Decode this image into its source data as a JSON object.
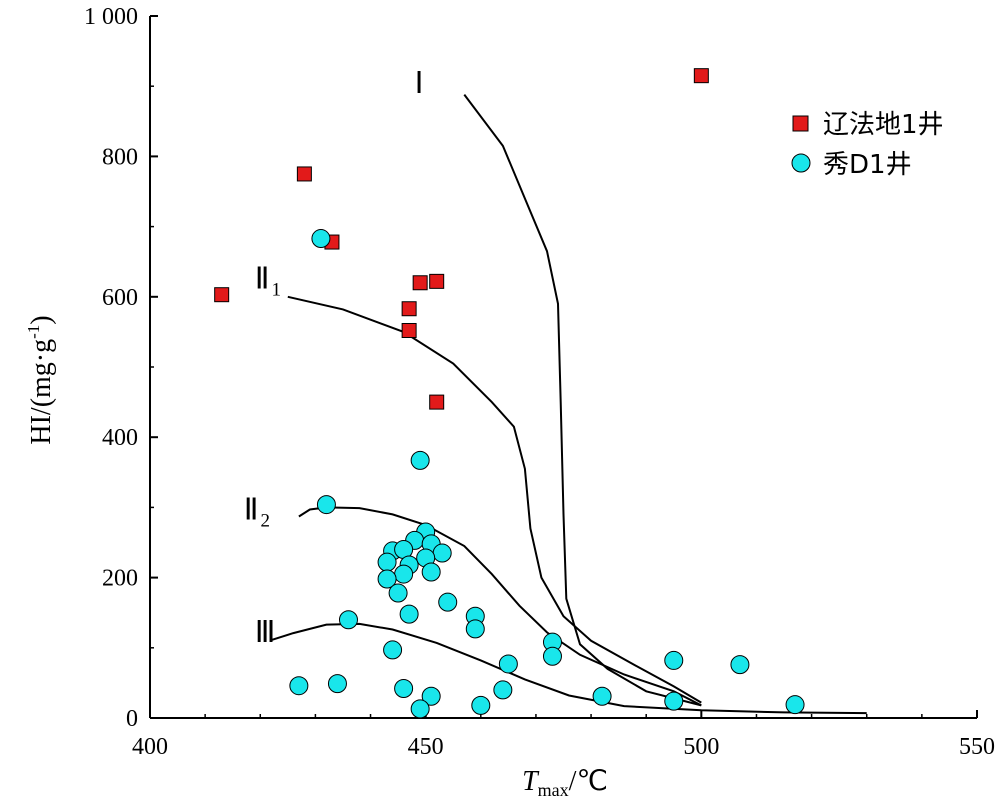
{
  "chart_data": {
    "type": "scatter",
    "xlabel_main": "T",
    "xlabel_sub": "max",
    "xlabel_unit": "/℃",
    "ylabel_main": "HI/(mg·g",
    "ylabel_sup": "-1",
    "ylabel_close": ")",
    "xlim": [
      400,
      550
    ],
    "ylim": [
      0,
      1000
    ],
    "x_ticks": [
      400,
      450,
      500,
      550
    ],
    "x_tick_labels": [
      "400",
      "450",
      "500",
      "550"
    ],
    "y_ticks": [
      0,
      200,
      400,
      600,
      800,
      1000
    ],
    "y_tick_labels": [
      "0",
      "200",
      "400",
      "600",
      "800",
      "1 000"
    ],
    "grid": false,
    "legend_position": "top-right",
    "series": [
      {
        "name": "辽法地1井",
        "marker": "square",
        "color": "#e21a1a",
        "points": [
          [
            413,
            603
          ],
          [
            428,
            775
          ],
          [
            433,
            678
          ],
          [
            447,
            583
          ],
          [
            447,
            552
          ],
          [
            449,
            620
          ],
          [
            452,
            622
          ],
          [
            452,
            450
          ],
          [
            500,
            915
          ]
        ]
      },
      {
        "name": "秀D1井",
        "marker": "circle",
        "color": "#19e6eb",
        "points": [
          [
            431,
            683
          ],
          [
            449,
            367
          ],
          [
            432,
            304
          ],
          [
            450,
            265
          ],
          [
            448,
            253
          ],
          [
            451,
            248
          ],
          [
            444,
            238
          ],
          [
            446,
            240
          ],
          [
            453,
            235
          ],
          [
            450,
            228
          ],
          [
            443,
            222
          ],
          [
            447,
            218
          ],
          [
            446,
            205
          ],
          [
            451,
            208
          ],
          [
            443,
            198
          ],
          [
            445,
            178
          ],
          [
            447,
            148
          ],
          [
            454,
            165
          ],
          [
            459,
            145
          ],
          [
            459,
            127
          ],
          [
            436,
            140
          ],
          [
            444,
            97
          ],
          [
            473,
            108
          ],
          [
            473,
            88
          ],
          [
            465,
            77
          ],
          [
            495,
            82
          ],
          [
            507,
            76
          ],
          [
            427,
            46
          ],
          [
            434,
            49
          ],
          [
            446,
            42
          ],
          [
            451,
            31
          ],
          [
            449,
            13
          ],
          [
            460,
            18
          ],
          [
            464,
            40
          ],
          [
            482,
            31
          ],
          [
            495,
            24
          ],
          [
            517,
            19
          ]
        ]
      }
    ],
    "curves": [
      {
        "label": "Ⅰ",
        "label_at": [
          448,
          890
        ],
        "points": [
          [
            457,
            888
          ],
          [
            464,
            815
          ],
          [
            468,
            740
          ],
          [
            472,
            665
          ],
          [
            474,
            590
          ],
          [
            474.5,
            450
          ],
          [
            475,
            290
          ],
          [
            475.5,
            170
          ],
          [
            478,
            105
          ],
          [
            483,
            70
          ],
          [
            490,
            38
          ],
          [
            500,
            18
          ]
        ]
      },
      {
        "label": "Ⅱ",
        "label_sub": "1",
        "label_at": [
          419,
          612
        ],
        "points": [
          [
            425,
            600
          ],
          [
            435,
            582
          ],
          [
            446,
            550
          ],
          [
            455,
            505
          ],
          [
            462,
            450
          ],
          [
            466,
            415
          ],
          [
            468,
            355
          ],
          [
            469,
            270
          ],
          [
            471,
            200
          ],
          [
            475,
            145
          ],
          [
            480,
            110
          ],
          [
            488,
            75
          ],
          [
            495,
            45
          ],
          [
            500,
            22
          ]
        ]
      },
      {
        "label": "Ⅱ",
        "label_sub": "2",
        "label_at": [
          417,
          283
        ],
        "points": [
          [
            427,
            287
          ],
          [
            429,
            297
          ],
          [
            432,
            300
          ],
          [
            438,
            299
          ],
          [
            444,
            290
          ],
          [
            450,
            275
          ],
          [
            457,
            245
          ],
          [
            462,
            205
          ],
          [
            467,
            160
          ],
          [
            472,
            122
          ],
          [
            478,
            90
          ],
          [
            486,
            62
          ],
          [
            495,
            38
          ],
          [
            500,
            18
          ]
        ]
      },
      {
        "label": "Ⅲ",
        "label_at": [
          419,
          108
        ],
        "points": [
          [
            422,
            111
          ],
          [
            426,
            121
          ],
          [
            432,
            133
          ],
          [
            438,
            134
          ],
          [
            444,
            126
          ],
          [
            452,
            107
          ],
          [
            460,
            82
          ],
          [
            468,
            55
          ],
          [
            476,
            32
          ],
          [
            486,
            17
          ],
          [
            500,
            11
          ],
          [
            515,
            8
          ],
          [
            530,
            7
          ]
        ]
      }
    ]
  }
}
